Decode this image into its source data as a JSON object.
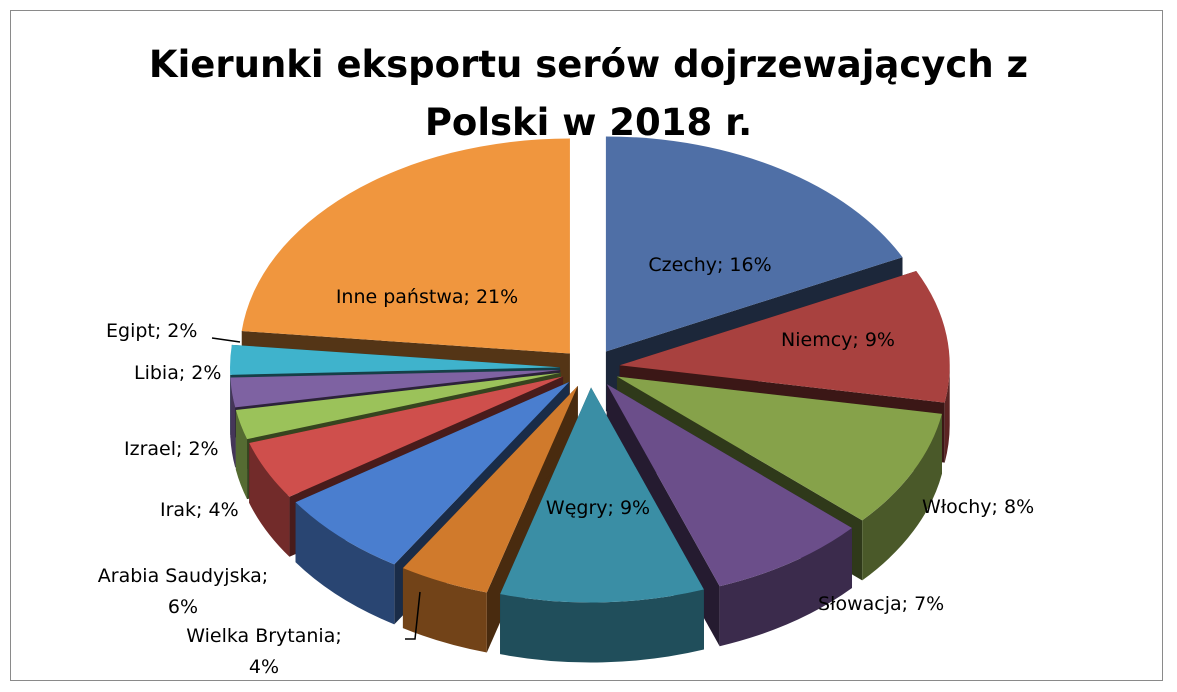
{
  "chart_data": {
    "type": "pie",
    "title": "Kierunki eksportu serów dojrzewających z Polski w 2018 r.",
    "title_lines": [
      "Kierunki eksportu serów dojrzewających z",
      "Polski w 2018 r."
    ],
    "slices": [
      {
        "name": "Czechy",
        "value": 16,
        "label": "Czechy; 16%",
        "color": "#4F6FA6"
      },
      {
        "name": "Niemcy",
        "value": 9,
        "label": "Niemcy; 9%",
        "color": "#A8413F"
      },
      {
        "name": "Włochy",
        "value": 8,
        "label": "Włochy; 8%",
        "color": "#86A24A"
      },
      {
        "name": "Słowacja",
        "value": 7,
        "label": "Słowacja; 7%",
        "color": "#6B4E8A"
      },
      {
        "name": "Węgry",
        "value": 9,
        "label": "Węgry; 9%",
        "color": "#3A8EA5"
      },
      {
        "name": "Wielka Brytania",
        "value": 4,
        "label_lines": [
          "Wielka Brytania;",
          "4%"
        ],
        "color": "#D07A2C"
      },
      {
        "name": "Arabia Saudyjska",
        "value": 6,
        "label_lines": [
          "Arabia Saudyjska;",
          "6%"
        ],
        "color": "#4A7ECF"
      },
      {
        "name": "Irak",
        "value": 4,
        "label": "Irak; 4%",
        "color": "#CF4F4C"
      },
      {
        "name": "Izrael",
        "value": 2,
        "label": "Izrael; 2%",
        "color": "#9BC25A"
      },
      {
        "name": "Libia",
        "value": 2,
        "label": "Libia; 2%",
        "color": "#7E62A2"
      },
      {
        "name": "Egipt",
        "value": 2,
        "label": "Egipt; 2%",
        "color": "#3FB3CC"
      },
      {
        "name": "Inne państwa",
        "value": 21,
        "label": "Inne państwa; 21%",
        "color": "#F0963E"
      }
    ],
    "legend": "none"
  }
}
